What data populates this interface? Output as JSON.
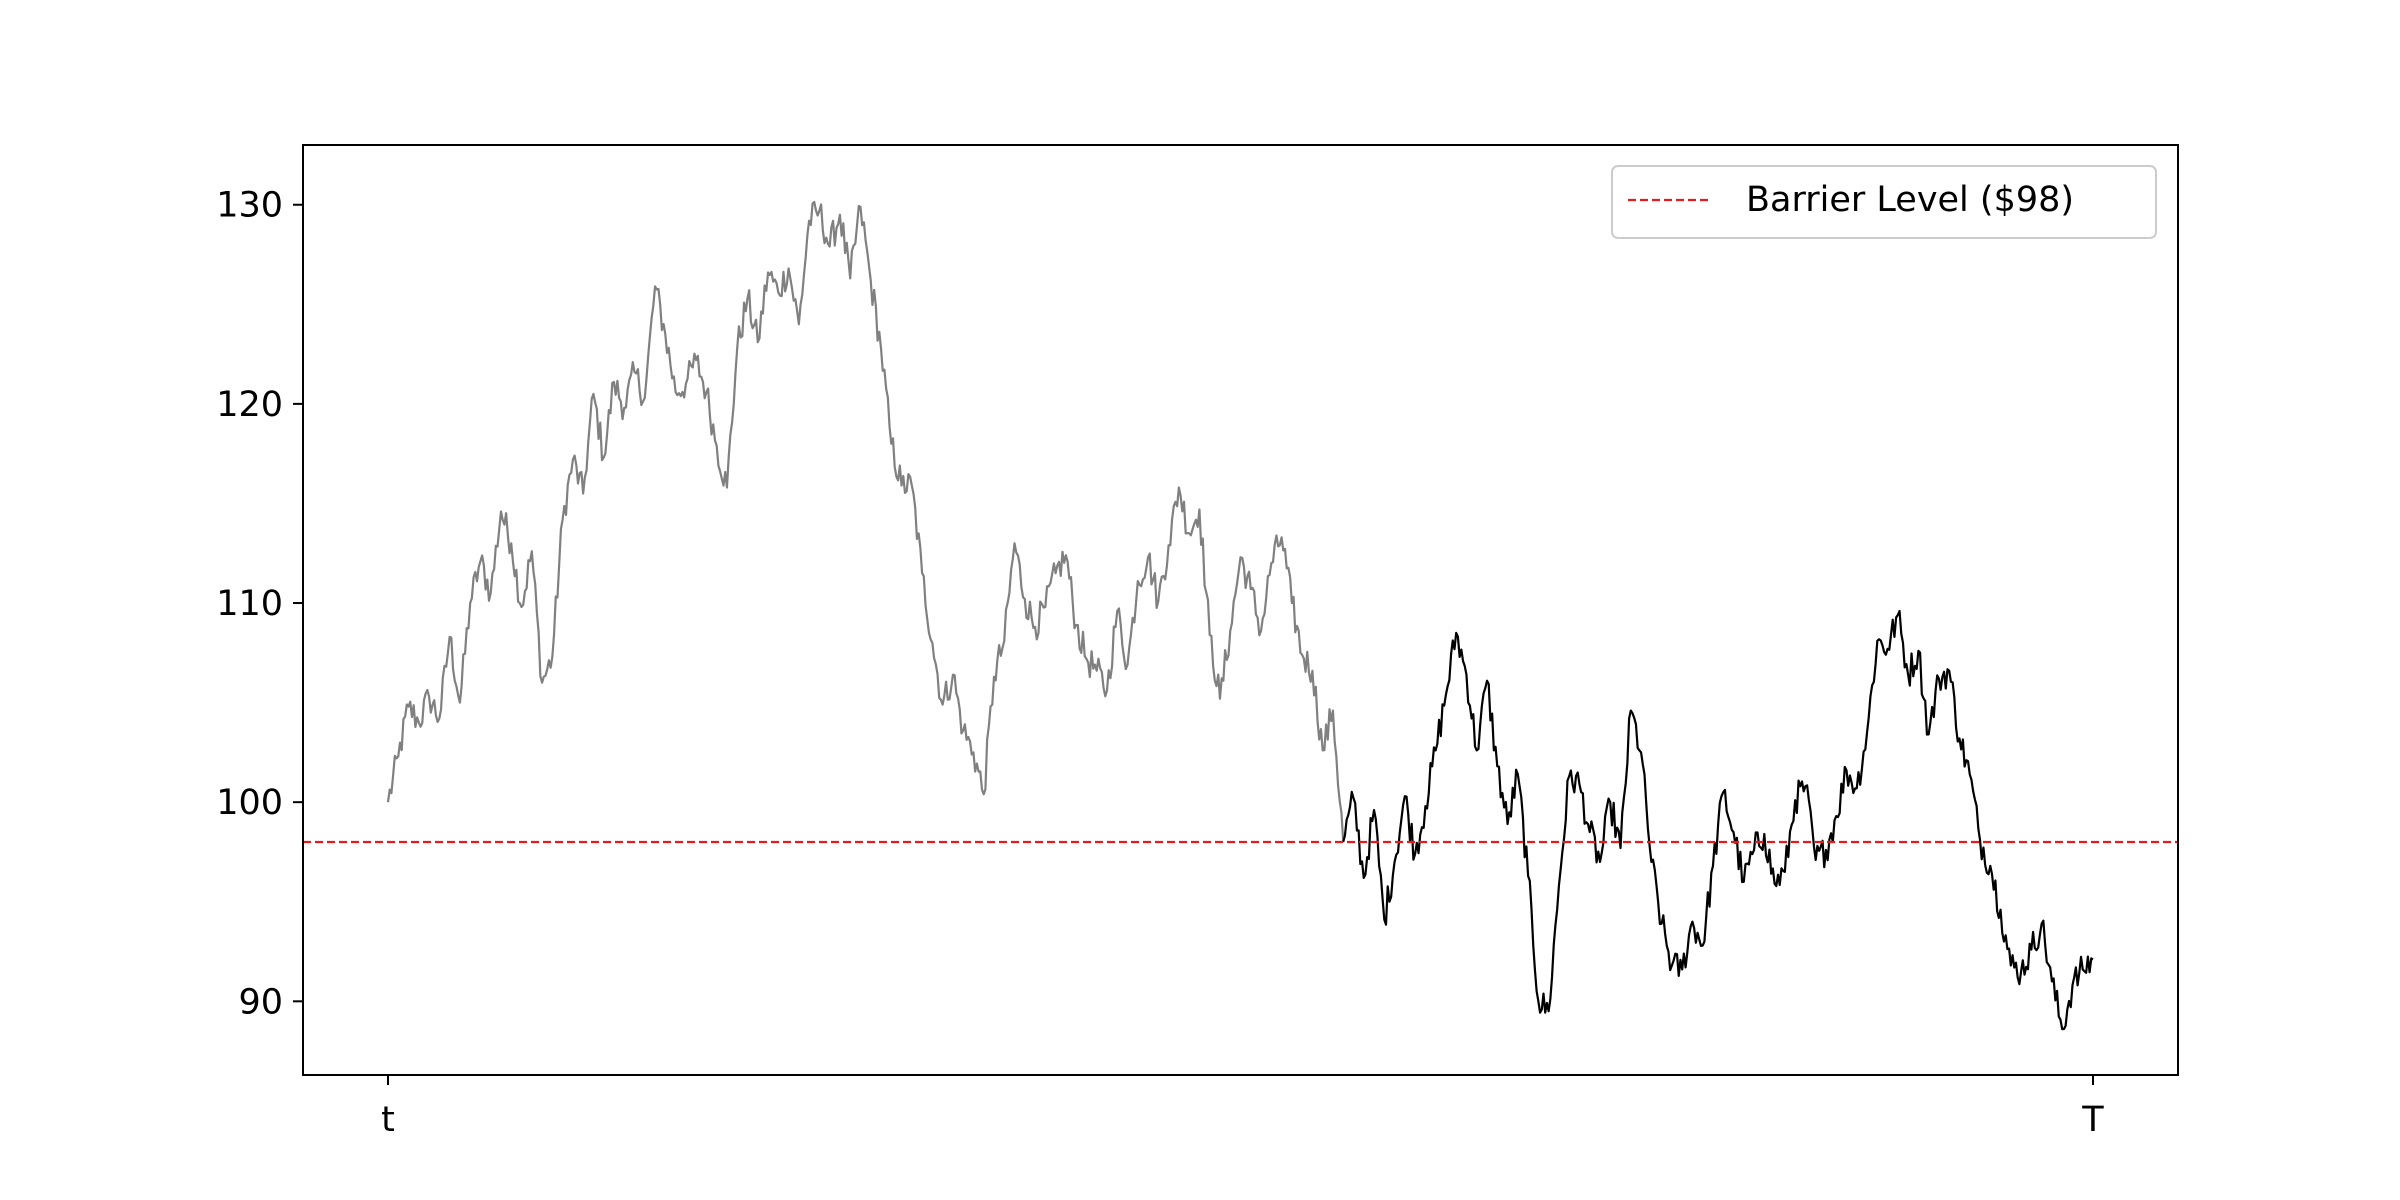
{
  "chart_data": {
    "type": "line",
    "title": "",
    "xlabel": "",
    "ylabel": "",
    "x_ticks": [
      "t",
      "T"
    ],
    "y_ticks": [
      90,
      100,
      110,
      120,
      130
    ],
    "ylim": [
      86.3,
      133.0
    ],
    "grid": false,
    "legend_position": "top-right",
    "hline": {
      "name": "Barrier Level ($98)",
      "value": 98,
      "color": "#e41a1c",
      "style": "dashed"
    },
    "path_colors": {
      "before_crossing": "#808080",
      "after_crossing": "#000000"
    },
    "path_anchor_values": [
      100.0,
      102.3,
      104.8,
      104.0,
      105.3,
      104.2,
      108.3,
      105.0,
      110.0,
      112.1,
      110.5,
      114.6,
      113.0,
      109.8,
      112.6,
      106.0,
      107.3,
      114.2,
      117.2,
      115.5,
      120.5,
      117.3,
      121.1,
      119.8,
      121.6,
      120.3,
      125.9,
      123.5,
      120.6,
      121.0,
      122.2,
      120.6,
      117.9,
      115.8,
      122.8,
      125.3,
      123.1,
      126.6,
      125.6,
      126.8,
      124.0,
      129.2,
      129.7,
      127.9,
      129.5,
      126.3,
      129.9,
      126.2,
      122.8,
      118.0,
      115.9,
      115.9,
      111.5,
      108.0,
      104.9,
      106.4,
      103.6,
      102.5,
      100.4,
      106.3,
      108.1,
      113.0,
      110.2,
      108.8,
      109.8,
      111.5,
      112.4,
      108.9,
      107.2,
      106.6,
      105.6,
      109.6,
      106.9,
      111.1,
      112.3,
      110.1,
      112.9,
      115.8,
      113.5,
      114.7,
      108.4,
      105.2,
      108.6,
      112.3,
      110.7,
      108.6,
      112.0,
      113.3,
      110.0,
      107.4,
      106.6,
      102.6,
      104.6,
      98.0,
      100.2,
      96.2,
      99.6,
      94.1,
      97.0,
      100.3,
      97.4,
      99.8,
      102.6,
      105.4,
      108.5,
      106.4,
      102.6,
      106.1,
      101.8,
      98.9,
      101.4,
      96.3,
      90.0,
      89.5,
      95.8,
      101.3,
      100.9,
      98.5,
      97.0,
      100.0,
      97.7,
      104.6,
      102.5,
      97.0,
      93.9,
      91.8,
      91.6,
      94.0,
      92.8,
      96.8,
      100.5,
      98.5,
      96.0,
      97.6,
      98.4,
      95.9,
      96.5,
      100.1,
      100.8,
      97.1,
      97.6,
      99.3,
      101.6,
      100.7,
      103.5,
      108.1,
      107.7,
      109.4,
      106.4,
      107.6,
      103.4,
      106.2,
      106.6,
      103.2,
      101.4,
      98.1,
      96.8,
      94.6,
      91.8,
      91.5,
      92.6,
      93.9,
      91.0,
      88.6,
      90.8,
      91.6,
      92.1
    ],
    "first_crossing_index": 93
  }
}
